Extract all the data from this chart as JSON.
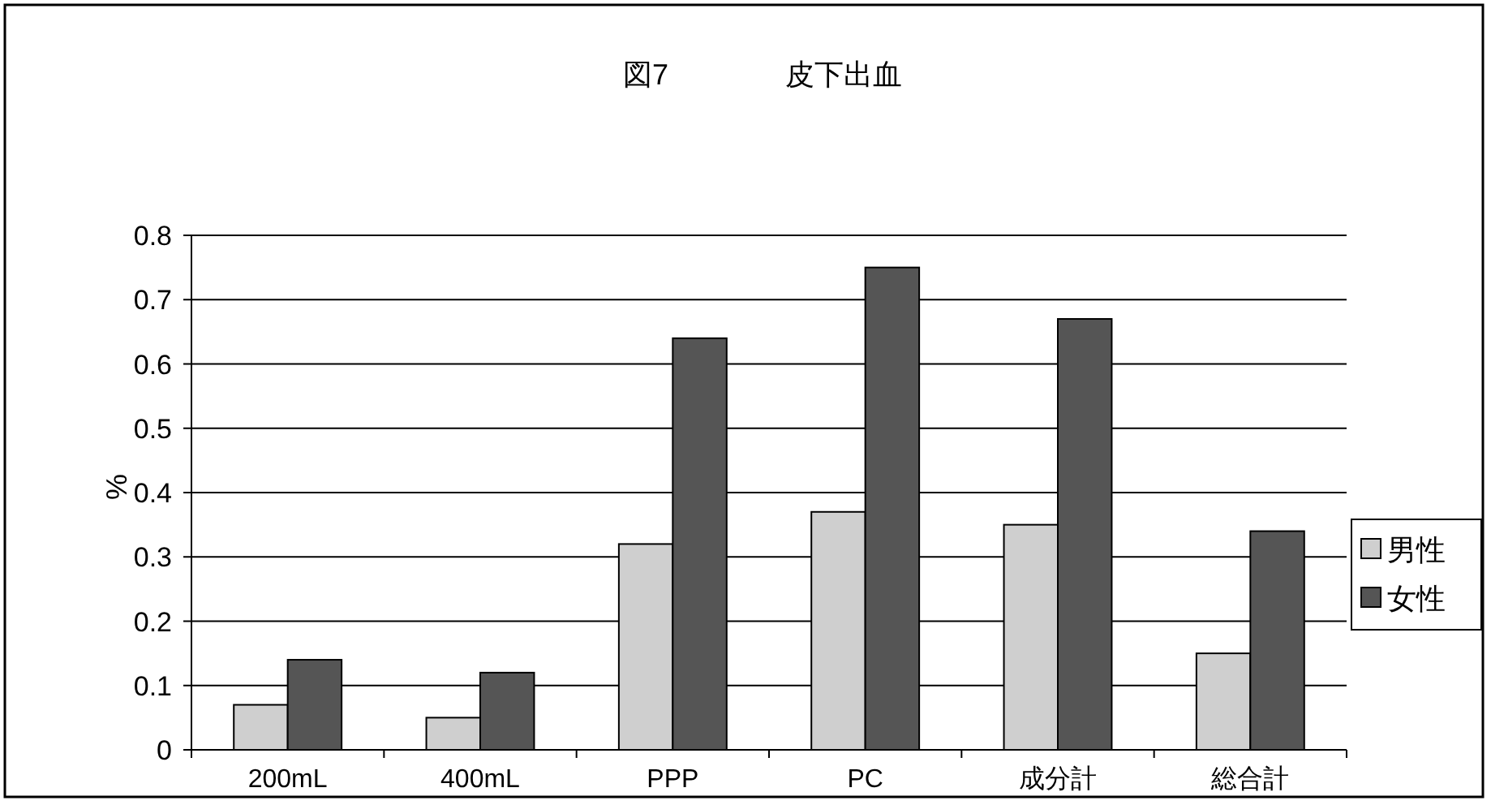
{
  "chart_data": {
    "type": "bar",
    "title": "図7　　　　皮下出血",
    "ylabel": "%",
    "categories": [
      "200mL",
      "400mL",
      "PPP",
      "PC",
      "成分計",
      "総合計"
    ],
    "series": [
      {
        "name": "男性",
        "color": "#cfcfcf",
        "values": [
          0.07,
          0.05,
          0.32,
          0.37,
          0.35,
          0.15
        ]
      },
      {
        "name": "女性",
        "color": "#555555",
        "values": [
          0.14,
          0.12,
          0.64,
          0.75,
          0.67,
          0.34
        ]
      }
    ],
    "ylim": [
      0,
      0.8
    ],
    "yticks": [
      {
        "value": 0,
        "label": "0"
      },
      0.1,
      0.2,
      0.3,
      0.4,
      0.5,
      0.6,
      0.7,
      0.8
    ],
    "grid": "y",
    "legend": "right"
  }
}
